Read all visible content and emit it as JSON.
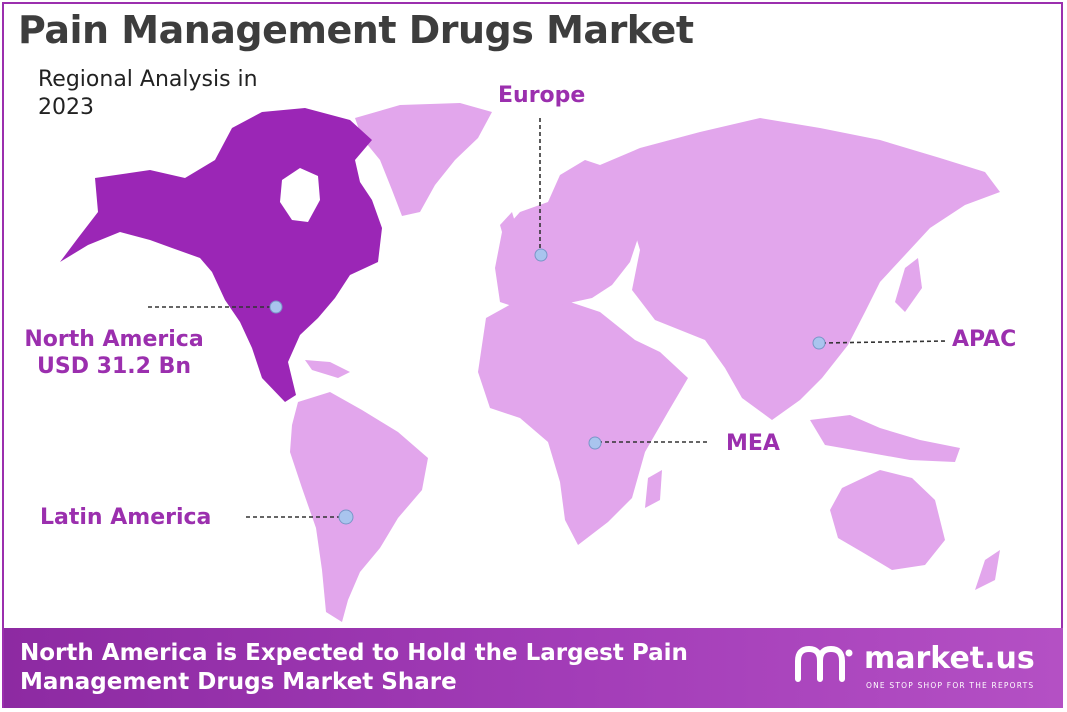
{
  "title": "Pain Management Drugs Market",
  "subtitle": "Regional Analysis in 2023",
  "colors": {
    "accent": "#9b2fae",
    "highlight_region": "#9b26b6",
    "other_regions": "#e2a6ec",
    "marker": "#a9c4ee",
    "banner": "#9b34b1"
  },
  "regions": {
    "north_america": {
      "name": "North America",
      "value": "USD 31.2 Bn",
      "highlighted": true
    },
    "europe": {
      "name": "Europe"
    },
    "apac": {
      "name": "APAC"
    },
    "mea": {
      "name": "MEA"
    },
    "latin_america": {
      "name": "Latin America"
    }
  },
  "footer": {
    "headline_line1": "North America is Expected to Hold the Largest Pain",
    "headline_line2": "Management Drugs Market Share",
    "brand": "market.us",
    "tagline": "ONE STOP SHOP FOR THE REPORTS"
  }
}
